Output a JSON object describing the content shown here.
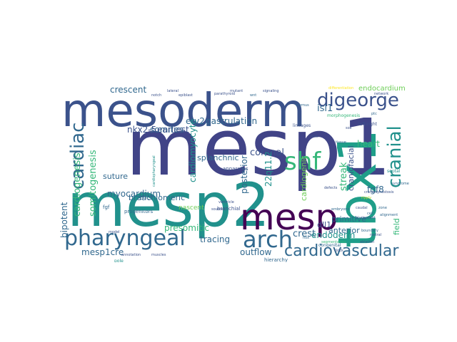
{
  "palette": {
    "dark_purple": "#440154",
    "indigo": "#3b528b",
    "slate_blue": "#414487",
    "blue": "#31688e",
    "teal": "#21918c",
    "teal_green": "#1f9e89",
    "green": "#35b779",
    "light_green": "#6ece58",
    "lime": "#b5de2b",
    "yellow": "#fde725"
  },
  "words": {
    "mesp1": "mesp1",
    "mesoderm": "mesoderm",
    "mesp2": "mesp2",
    "tbx1": "tbx1",
    "mesp": "mesp",
    "arch": "arch",
    "pharyngeal": "pharyngeal",
    "shf": "shf",
    "cardiac": "cardiac",
    "digeorge": "digeorge",
    "cranial": "cranial",
    "cardiovascular": "cardiovascular",
    "cardiogenesis": "cardiogenesis",
    "somitogenesis": "somitogenesis",
    "crescent": "crescent",
    "somites": "somites",
    "etv2": "etv2",
    "gastrulation": "gastrulation",
    "isl1": "isl1",
    "nkx25": "nkx2-5",
    "earliest": "earliest",
    "cardiomyocyte": "cardiomyocyte",
    "splanchnic": "splanchnic",
    "coronal": "coronal",
    "heart": "heart",
    "streak": "streak",
    "myocardium": "myocardium",
    "suture": "suture",
    "branchiomeric": "branchiomeric",
    "posterior": "posterior",
    "q22": "22q11.2",
    "cardiogenic": "cardiogenic",
    "craniofacial": "craniofacial",
    "endocardium": "endocardium",
    "primitive": "primitive",
    "fgf8": "fgf8",
    "field": "field",
    "dll1": "dll1",
    "anterior": "anterior",
    "endoderm": "endoderm",
    "crest": "crest",
    "bipotent": "bipotent",
    "mesp1cre": "mesp1cre",
    "presomitic": "presomitic",
    "tracing": "tracing",
    "outflow": "outflow",
    "nascent": "nascent",
    "cpcs": "cpcs",
    "progenitors": "progenitors",
    "fgf": "fgf",
    "branchial": "branchial",
    "apparatus": "apparatus",
    "lineages": "lineages",
    "morphogenesis": "morphogenesis",
    "leftright": "left-right",
    "hierarchy": "hierarchy",
    "pole": "pole",
    "congenital": "congenital",
    "segmentation": "segmentation",
    "ripply": "ripply",
    "hox": "hox",
    "pluripotent": "pluripotent",
    "craniosynostosis": "craniosynostosis",
    "alignment": "alignment",
    "embryonic": "embryonic",
    "septal": "septal",
    "syndrome": "syndrome",
    "differentiation": "differentiation",
    "ablation": "ablation",
    "rostral": "rostral",
    "caudal": "caudal",
    "thymus": "thymus",
    "parathyroid": "parathyroid",
    "annotation": "annotation",
    "muscles": "muscles",
    "model": "model",
    "cardiopharyngeal": "cardiopharyngeal",
    "lateral": "lateral",
    "ventricle": "ventricle",
    "signaling": "signaling",
    "epiblast": "epiblast",
    "boundary": "boundary",
    "mutant": "mutant",
    "wnt": "wnt",
    "notch": "notch",
    "tissue": "tissue",
    "ptc": "ptc",
    "sox": "sox",
    "fate": "fate",
    "cell": "cell",
    "zone": "zone",
    "defects": "defects",
    "clock": "clock",
    "source": "source",
    "network": "network"
  }
}
